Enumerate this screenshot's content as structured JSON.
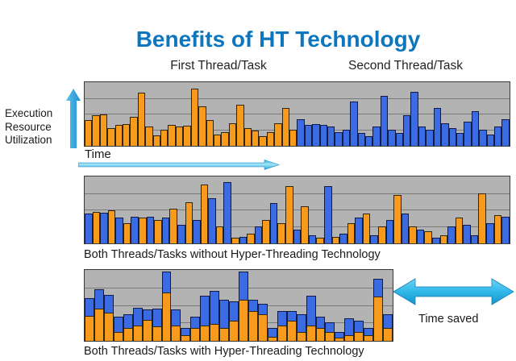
{
  "title": "Benefits of HT Technology",
  "labels": {
    "first_thread": "First Thread/Task",
    "second_thread": "Second Thread/Task",
    "y_axis": "Execution Resource Utilization",
    "time": "Time",
    "time_saved": "Time saved",
    "caption_without": "Both Threads/Tasks without Hyper-Threading Technology",
    "caption_with": "Both Threads/Tasks with Hyper-Threading Technology"
  },
  "colors": {
    "title_blue": "#0E76BD",
    "orange": "#F89B1C",
    "orange_border": "#30260B",
    "blue": "#3B6BE3",
    "blue_border": "#101C45",
    "panel_bg": "#B3B3B3",
    "gridline": "#7A7A7A",
    "panel_border": "#3A3A3A",
    "arrow_cyan": "#3FC0EE",
    "arrow_cyan_dark": "#1D93C4",
    "arrow_blue": "#2E9CDF"
  },
  "chart_data": {
    "type": "bar",
    "title": "Benefits of HT Technology",
    "xlabel": "Time",
    "ylabel": "Execution Resource Utilization",
    "unit": "schematic utilization, % of panel height",
    "grid": "3 horizontal gridlines per panel (25/50/75%)",
    "legend": {
      "orange": "First Thread/Task",
      "blue": "Second Thread/Task"
    },
    "panels": [
      {
        "name": "separate-threads",
        "mode": "split",
        "split_index": 28,
        "series": [
          "First Thread/Task (orange, bars 1-28)",
          "Second Thread/Task (blue, bars 29-56)"
        ],
        "heights": [
          40,
          48,
          50,
          28,
          33,
          34,
          45,
          84,
          30,
          17,
          25,
          33,
          30,
          32,
          90,
          62,
          40,
          18,
          22,
          35,
          65,
          28,
          24,
          15,
          22,
          35,
          60,
          25,
          42,
          33,
          34,
          33,
          30,
          22,
          25,
          70,
          20,
          15,
          30,
          78,
          25,
          20,
          48,
          85,
          30,
          25,
          60,
          35,
          28,
          20,
          38,
          55,
          25,
          18,
          30,
          42
        ]
      },
      {
        "name": "without-hyper-threading",
        "mode": "pattern",
        "pattern": "BOBOBOBOBOBOBOBOBOBOBOBOBOOBOBOBOBOBOBOBOBOBOBOBOBBOBOB",
        "heights": [
          45,
          47,
          46,
          50,
          38,
          30,
          40,
          38,
          40,
          35,
          38,
          52,
          28,
          62,
          35,
          88,
          68,
          25,
          92,
          8,
          10,
          15,
          25,
          35,
          60,
          30,
          85,
          20,
          55,
          12,
          8,
          85,
          10,
          15,
          30,
          38,
          45,
          12,
          25,
          35,
          72,
          45,
          25,
          20,
          18,
          8,
          12,
          25,
          38,
          28,
          12,
          75,
          30,
          42,
          40
        ]
      },
      {
        "name": "with-hyper-threading",
        "mode": "stacked",
        "stack_order": [
          "orange (first thread) bottom",
          "blue (second thread) top"
        ],
        "stacks": [
          [
            35,
            25
          ],
          [
            45,
            28
          ],
          [
            40,
            25
          ],
          [
            12,
            22
          ],
          [
            18,
            20
          ],
          [
            22,
            25
          ],
          [
            30,
            14
          ],
          [
            20,
            25
          ],
          [
            68,
            30
          ],
          [
            22,
            22
          ],
          [
            8,
            10
          ],
          [
            18,
            16
          ],
          [
            22,
            42
          ],
          [
            24,
            46
          ],
          [
            18,
            40
          ],
          [
            28,
            28
          ],
          [
            58,
            40
          ],
          [
            42,
            16
          ],
          [
            38,
            14
          ],
          [
            6,
            12
          ],
          [
            22,
            20
          ],
          [
            28,
            14
          ],
          [
            12,
            26
          ],
          [
            22,
            42
          ],
          [
            18,
            16
          ],
          [
            12,
            14
          ],
          [
            4,
            8
          ],
          [
            8,
            24
          ],
          [
            12,
            16
          ],
          [
            8,
            10
          ],
          [
            62,
            26
          ],
          [
            18,
            20
          ]
        ]
      }
    ]
  }
}
